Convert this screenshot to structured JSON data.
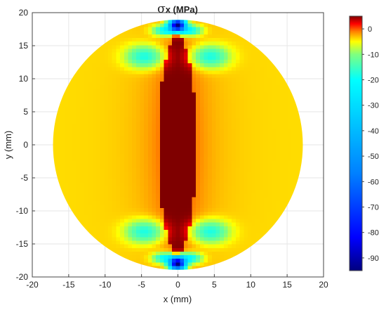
{
  "chart_data": {
    "type": "heatmap",
    "title_symbol": "σ",
    "title_rest": "x (MPa)",
    "xlabel": "x (mm)",
    "ylabel": "y (mm)",
    "xlim": [
      -20,
      20
    ],
    "ylim": [
      -20,
      20
    ],
    "x_ticks": [
      -20,
      -15,
      -10,
      -5,
      0,
      5,
      10,
      15,
      20
    ],
    "y_ticks": [
      -20,
      -15,
      -10,
      -5,
      0,
      5,
      10,
      15,
      20
    ],
    "grid": true,
    "domain": "disk of radius 18 mm centred at (0, 0)",
    "colorbar": {
      "colormap": "jet",
      "range": [
        -95,
        5
      ],
      "ticks": [
        0,
        -10,
        -20,
        -30,
        -40,
        -50,
        -60,
        -70,
        -80,
        -90
      ],
      "stops": [
        {
          "value": -95,
          "color": "#00007f"
        },
        {
          "value": -82,
          "color": "#0000ff"
        },
        {
          "value": -57,
          "color": "#007fff"
        },
        {
          "value": -20,
          "color": "#00ffff"
        },
        {
          "value": -10,
          "color": "#7fff7f"
        },
        {
          "value": -5,
          "color": "#ffff00"
        },
        {
          "value": -1,
          "color": "#ff7f00"
        },
        {
          "value": 2,
          "color": "#ff0000"
        },
        {
          "value": 5,
          "color": "#7f0000"
        }
      ]
    },
    "field_features": [
      {
        "feature": "maximum tension lens",
        "region": "|x| < 2.5 mm, |y| < 17 mm",
        "value": 5
      },
      {
        "feature": "tension band",
        "region": "flanks of central lens",
        "value": 1
      },
      {
        "feature": "near-zero background",
        "region": "outer disk",
        "value": -4
      },
      {
        "feature": "compression lobes",
        "region": "near (±4.5, ±13) mm",
        "value": -18
      },
      {
        "feature": "compression peaks",
        "region": "near (0, ±18) mm",
        "value": -90
      }
    ]
  }
}
